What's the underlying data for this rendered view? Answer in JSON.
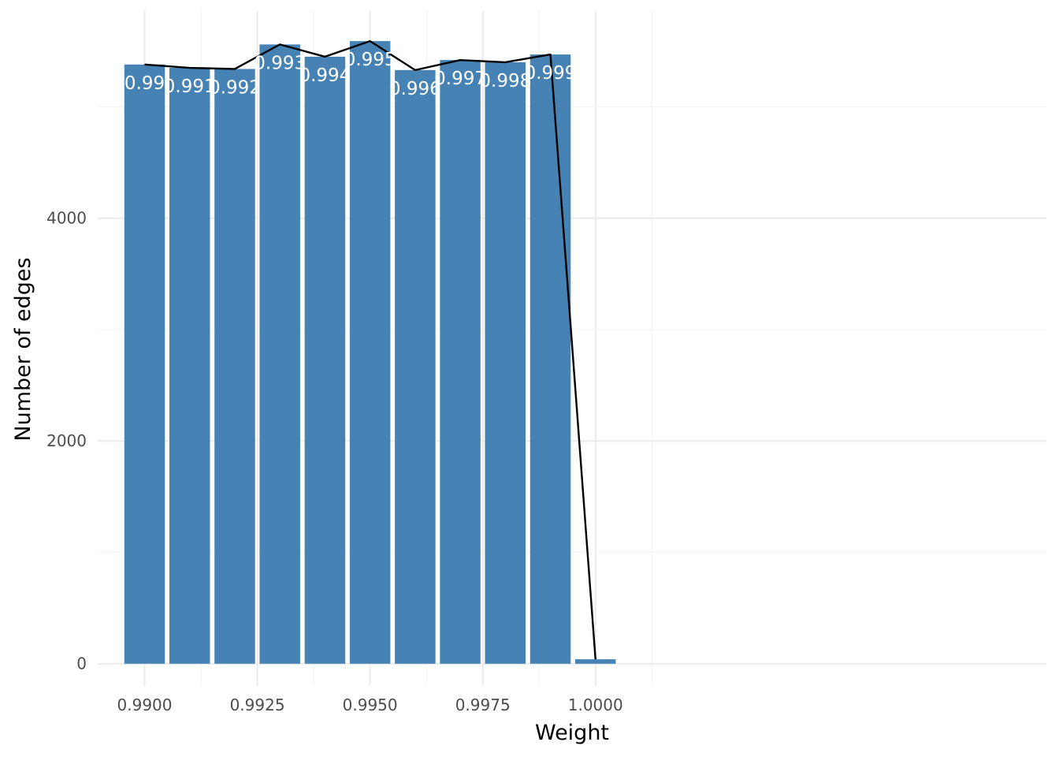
{
  "chart_data": {
    "type": "bar",
    "xlabel": "Weight",
    "ylabel": "Number of edges",
    "x_ticks": [
      "0.9900",
      "0.9925",
      "0.9950",
      "0.9975",
      "1.0000"
    ],
    "y_ticks": [
      "0",
      "2000",
      "4000"
    ],
    "xlim": [
      0.98896,
      1.01
    ],
    "ylim": [
      -200,
      5860
    ],
    "grid": true,
    "bar_color": "#4682b4",
    "line_color": "#000000",
    "x": [
      0.99,
      0.991,
      0.992,
      0.993,
      0.994,
      0.995,
      0.996,
      0.997,
      0.998,
      0.999,
      1.0
    ],
    "values": [
      5380,
      5350,
      5340,
      5560,
      5450,
      5590,
      5330,
      5420,
      5400,
      5470,
      40
    ],
    "data_labels": [
      "0.99",
      "0.991",
      "0.992",
      "0.993",
      "0.994",
      "0.995",
      "0.996",
      "0.997",
      "0.998",
      "0.999",
      ""
    ]
  }
}
